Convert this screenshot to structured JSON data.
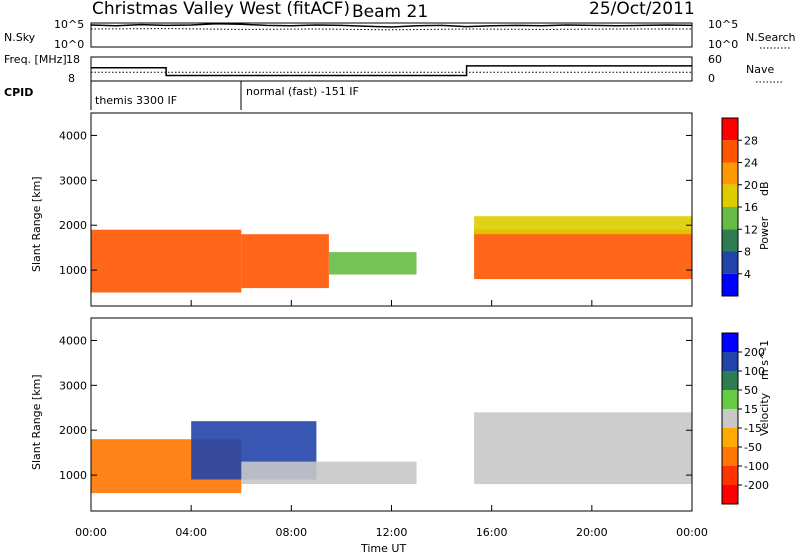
{
  "header": {
    "title": "Christmas Valley West (fitACF)",
    "beam": "Beam 21",
    "date": "25/Oct/2011"
  },
  "chart_data": [
    {
      "type": "line",
      "panel": "noise",
      "ylabel": "N.Sky",
      "yticks": [
        "10^5",
        "10^0"
      ],
      "right_label": "N.Search",
      "series": [
        {
          "name": "N.Sky",
          "x": [
            0,
            1,
            2,
            3,
            4,
            5,
            6,
            7,
            8,
            9,
            10,
            11,
            12,
            13,
            14,
            15,
            16,
            17,
            18,
            19,
            20,
            21,
            22,
            23,
            24
          ],
          "y": [
            5.5,
            5.3,
            5.6,
            5.4,
            5.5,
            5.8,
            5.7,
            5.4,
            5.3,
            5.5,
            5.4,
            5.2,
            5.0,
            5.3,
            5.4,
            5.1,
            5.3,
            5.4,
            5.3,
            5.5,
            5.4,
            5.3,
            5.4,
            5.5,
            5.4
          ]
        },
        {
          "name": "N.Search",
          "x": [
            0,
            3,
            6,
            9,
            12,
            15,
            18,
            21,
            24
          ],
          "y": [
            4.5,
            4.6,
            4.4,
            4.5,
            4.3,
            4.5,
            4.4,
            4.5,
            4.5
          ]
        }
      ]
    },
    {
      "type": "line",
      "panel": "frequency",
      "ylabel": "Freq. [MHz]",
      "left_ticks": [
        "18",
        "8"
      ],
      "right_ticks": [
        "60",
        "0"
      ],
      "right_label": "Nave",
      "series": [
        {
          "name": "Freq.",
          "x": [
            0,
            3,
            3,
            15,
            15,
            24
          ],
          "y": [
            13.5,
            13.5,
            10.3,
            10.3,
            14.3,
            14.3
          ]
        },
        {
          "name": "Nave",
          "x": [
            0,
            24
          ],
          "y": [
            22,
            22
          ]
        }
      ]
    },
    {
      "type": "table",
      "panel": "cpid",
      "label": "CPID",
      "segments": [
        {
          "start": 0,
          "end": 6,
          "text": "themis 3300 IF"
        },
        {
          "start": 6,
          "end": 24,
          "text": "normal (fast) -151 IF"
        }
      ]
    },
    {
      "type": "heatmap",
      "panel": "power",
      "quantity": "Power",
      "unit": "dB",
      "ylabel": "Slant Range [km]",
      "xlim": [
        0,
        24
      ],
      "ylim": [
        200,
        4500
      ],
      "yticks": [
        1000,
        2000,
        3000,
        4000
      ],
      "colorbar_ticks": [
        4,
        8,
        12,
        16,
        20,
        24,
        28
      ],
      "colorbar_colors": [
        "#0000ff",
        "#2244aa",
        "#2e7d52",
        "#66bb44",
        "#ddcc00",
        "#ff9900",
        "#ff5500",
        "#ff0000"
      ],
      "echo_regions": [
        {
          "start": 0,
          "end": 6,
          "range_low": 500,
          "range_high": 1900,
          "level": 26
        },
        {
          "start": 6,
          "end": 9.5,
          "range_low": 600,
          "range_high": 1800,
          "level": 24
        },
        {
          "start": 9.5,
          "end": 13,
          "range_low": 900,
          "range_high": 1400,
          "level": 14
        },
        {
          "start": 15.3,
          "end": 24,
          "range_low": 800,
          "range_high": 1900,
          "level": 26
        },
        {
          "start": 15.3,
          "end": 24,
          "range_low": 1800,
          "range_high": 2200,
          "level": 18
        }
      ]
    },
    {
      "type": "heatmap",
      "panel": "velocity",
      "quantity": "Velocity",
      "unit": "m s^-1",
      "ylabel": "Slant Range [km]",
      "xlabel": "Time UT",
      "xlim": [
        0,
        24
      ],
      "ylim": [
        200,
        4500
      ],
      "xticks": [
        "00:00",
        "04:00",
        "08:00",
        "12:00",
        "16:00",
        "20:00",
        "00:00"
      ],
      "yticks": [
        1000,
        2000,
        3000,
        4000
      ],
      "colorbar_ticks": [
        200,
        100,
        50,
        15,
        -15,
        -50,
        -100,
        -200
      ],
      "colorbar_colors": [
        "#0000ff",
        "#2244aa",
        "#2e7d52",
        "#66cc44",
        "#c8c8c8",
        "#ffaa00",
        "#ff7700",
        "#ff3300",
        "#ff0000"
      ],
      "echo_regions": [
        {
          "start": 0,
          "end": 6,
          "range_low": 600,
          "range_high": 1800,
          "level": -60
        },
        {
          "start": 4,
          "end": 9,
          "range_low": 900,
          "range_high": 2200,
          "level": 150
        },
        {
          "start": 6,
          "end": 13,
          "range_low": 800,
          "range_high": 1300,
          "level": 10
        },
        {
          "start": 15.3,
          "end": 24,
          "range_low": 800,
          "range_high": 2400,
          "level": 0
        }
      ]
    }
  ]
}
